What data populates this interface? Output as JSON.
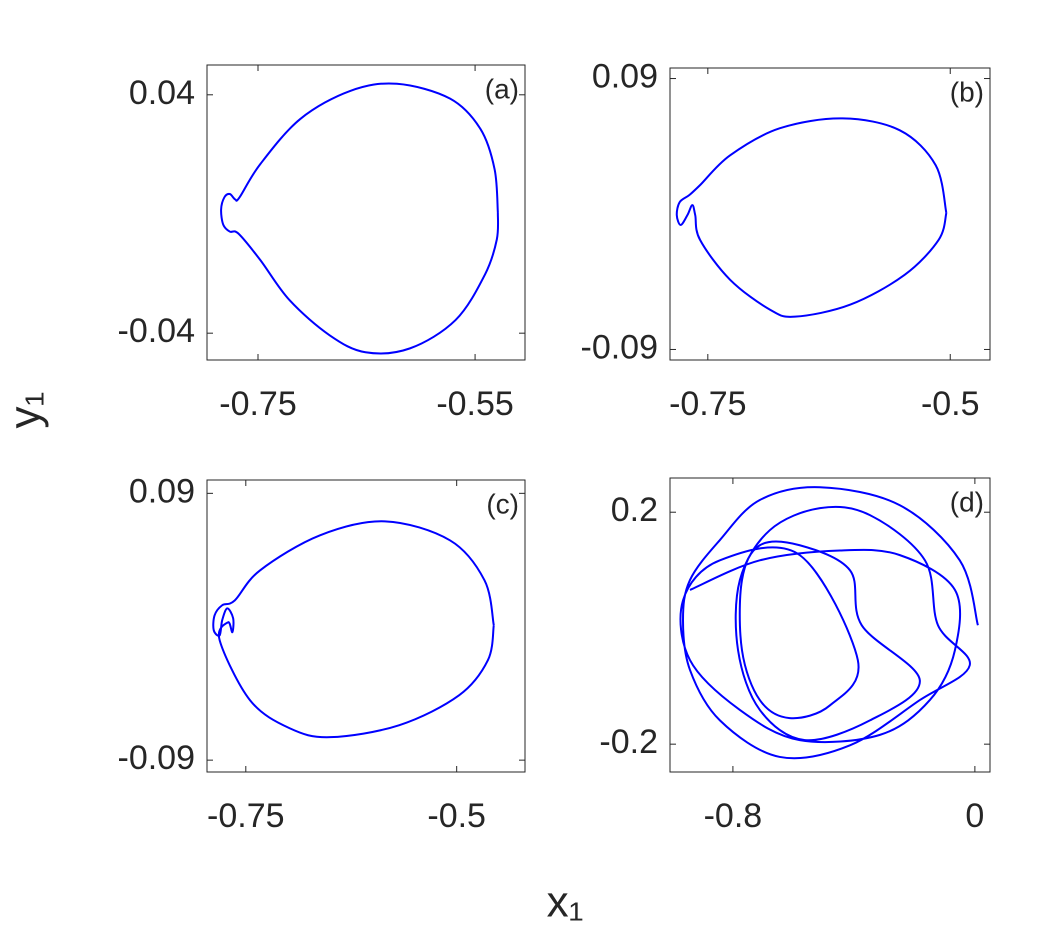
{
  "xlabel": "x₁",
  "ylabel": "y₁",
  "chart_data": [
    {
      "type": "line",
      "annotation": "(a)",
      "color": "#0000ff",
      "xlim": [
        -0.797,
        -0.504
      ],
      "ylim": [
        -0.049,
        0.05
      ],
      "xticks": [
        -0.75,
        -0.55
      ],
      "yticks": [
        -0.04,
        0.04
      ],
      "x": [
        -0.529,
        -0.532,
        -0.545,
        -0.573,
        -0.622,
        -0.665,
        -0.711,
        -0.748,
        -0.767,
        -0.771,
        -0.776,
        -0.781,
        -0.784,
        -0.782,
        -0.776,
        -0.768,
        -0.748,
        -0.721,
        -0.684,
        -0.651,
        -0.61,
        -0.568,
        -0.541,
        -0.53,
        -0.529
      ],
      "y": [
        0.0005,
        0.015,
        0.0285,
        0.0387,
        0.0437,
        0.0413,
        0.0319,
        0.0167,
        0.0056,
        0.0049,
        0.0067,
        0.0056,
        0.0015,
        -0.0036,
        -0.0059,
        -0.0066,
        -0.0154,
        -0.0289,
        -0.0407,
        -0.0464,
        -0.0451,
        -0.0356,
        -0.0204,
        -0.0086,
        0.0005
      ]
    },
    {
      "type": "line",
      "annotation": "(b)",
      "color": "#0000ff",
      "xlim": [
        -0.789,
        -0.459
      ],
      "ylim": [
        -0.097,
        0.097
      ],
      "xticks": [
        -0.75,
        -0.5
      ],
      "yticks": [
        -0.09,
        0.09
      ],
      "x": [
        -0.504,
        -0.515,
        -0.552,
        -0.611,
        -0.676,
        -0.727,
        -0.758,
        -0.769,
        -0.779,
        -0.782,
        -0.778,
        -0.771,
        -0.766,
        -0.763,
        -0.758,
        -0.727,
        -0.686,
        -0.66,
        -0.603,
        -0.547,
        -0.512,
        -0.504
      ],
      "y": [
        0.0007,
        0.0324,
        0.0556,
        0.0635,
        0.0569,
        0.039,
        0.0192,
        0.0126,
        0.0079,
        -0.0007,
        -0.0073,
        -0.0007,
        0.0059,
        -0.0007,
        -0.0172,
        -0.0437,
        -0.0635,
        -0.0682,
        -0.0602,
        -0.0404,
        -0.0172,
        0.0007
      ]
    },
    {
      "type": "line",
      "annotation": "(c)",
      "color": "#0000ff",
      "xlim": [
        -0.796,
        -0.419
      ],
      "ylim": [
        -0.098,
        0.099
      ],
      "xticks": [
        -0.75,
        -0.5
      ],
      "yticks": [
        -0.09,
        0.09
      ],
      "x": [
        -0.456,
        -0.467,
        -0.508,
        -0.585,
        -0.662,
        -0.733,
        -0.763,
        -0.778,
        -0.787,
        -0.788,
        -0.781,
        -0.778,
        -0.772,
        -0.765,
        -0.766,
        -0.771,
        -0.781,
        -0.745,
        -0.698,
        -0.65,
        -0.568,
        -0.497,
        -0.463,
        -0.456
      ],
      "y": [
        0.001,
        0.0313,
        0.0583,
        0.0711,
        0.0617,
        0.0381,
        0.0178,
        0.0145,
        0.0077,
        -0.0024,
        -0.0058,
        0.0044,
        0.0124,
        0.0057,
        -0.0037,
        0.003,
        -0.0091,
        -0.0496,
        -0.0685,
        -0.0745,
        -0.0664,
        -0.0462,
        -0.0226,
        0.001
      ]
    },
    {
      "type": "line",
      "annotation": "(d)",
      "color": "#0000ff",
      "xlim": [
        -1.008,
        0.05
      ],
      "ylim": [
        -0.248,
        0.259
      ],
      "xticks": [
        -0.8,
        0
      ],
      "yticks": [
        -0.2,
        0.2
      ],
      "x": [
        0.01,
        -0.05,
        -0.248,
        -0.512,
        -0.711,
        -0.843,
        -0.942,
        -0.965,
        -0.942,
        -0.843,
        -0.645,
        -0.413,
        -0.182,
        -0.017,
        -0.122,
        -0.165,
        -0.347,
        -0.512,
        -0.678,
        -0.777,
        -0.783,
        -0.711,
        -0.562,
        -0.347,
        -0.182,
        -0.374,
        -0.413,
        -0.579,
        -0.711,
        -0.77,
        -0.77,
        -0.711,
        -0.612,
        -0.479,
        -0.387,
        -0.579,
        -0.843,
        -0.965,
        -0.942,
        -0.777,
        -0.579,
        -0.314,
        -0.149,
        -0.066,
        -0.066,
        -0.248,
        -0.446,
        -0.711,
        -0.942
      ],
      "y": [
        0.005,
        0.117,
        0.212,
        0.243,
        0.221,
        0.152,
        0.083,
        0.014,
        -0.072,
        -0.159,
        -0.222,
        -0.202,
        -0.124,
        -0.064,
        0.005,
        0.117,
        0.195,
        0.207,
        0.169,
        0.083,
        -0.038,
        -0.141,
        -0.193,
        -0.159,
        -0.09,
        0.005,
        0.1,
        0.143,
        0.143,
        0.083,
        -0.038,
        -0.124,
        -0.155,
        -0.133,
        -0.055,
        0.126,
        0.117,
        0.048,
        -0.055,
        -0.141,
        -0.193,
        -0.184,
        -0.124,
        -0.038,
        0.066,
        0.126,
        0.134,
        0.117,
        0.066
      ]
    }
  ]
}
